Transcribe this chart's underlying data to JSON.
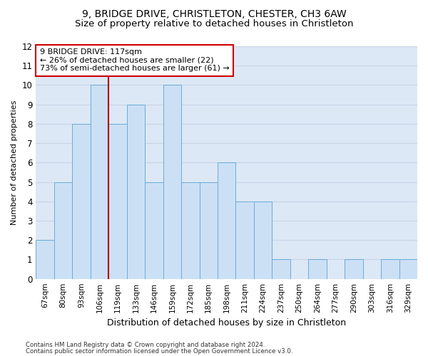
{
  "title1": "9, BRIDGE DRIVE, CHRISTLETON, CHESTER, CH3 6AW",
  "title2": "Size of property relative to detached houses in Christleton",
  "xlabel": "Distribution of detached houses by size in Christleton",
  "ylabel": "Number of detached properties",
  "categories": [
    "67sqm",
    "80sqm",
    "93sqm",
    "106sqm",
    "119sqm",
    "133sqm",
    "146sqm",
    "159sqm",
    "172sqm",
    "185sqm",
    "198sqm",
    "211sqm",
    "224sqm",
    "237sqm",
    "250sqm",
    "264sqm",
    "277sqm",
    "290sqm",
    "303sqm",
    "316sqm",
    "329sqm"
  ],
  "values": [
    2,
    5,
    8,
    10,
    8,
    9,
    5,
    10,
    5,
    5,
    6,
    4,
    4,
    1,
    0,
    1,
    0,
    1,
    0,
    1,
    1
  ],
  "bar_color": "#cce0f5",
  "bar_edge_color": "#6aacda",
  "red_line_x": 3.5,
  "annotation_text_line1": "9 BRIDGE DRIVE: 117sqm",
  "annotation_text_line2": "← 26% of detached houses are smaller (22)",
  "annotation_text_line3": "73% of semi-detached houses are larger (61) →",
  "footer1": "Contains HM Land Registry data © Crown copyright and database right 2024.",
  "footer2": "Contains public sector information licensed under the Open Government Licence v3.0.",
  "ylim": [
    0,
    12
  ],
  "yticks": [
    0,
    1,
    2,
    3,
    4,
    5,
    6,
    7,
    8,
    9,
    10,
    11,
    12
  ],
  "grid_color": "#c8d4e8",
  "bg_color": "#dce8f5",
  "title1_fontsize": 10,
  "title2_fontsize": 9.5
}
